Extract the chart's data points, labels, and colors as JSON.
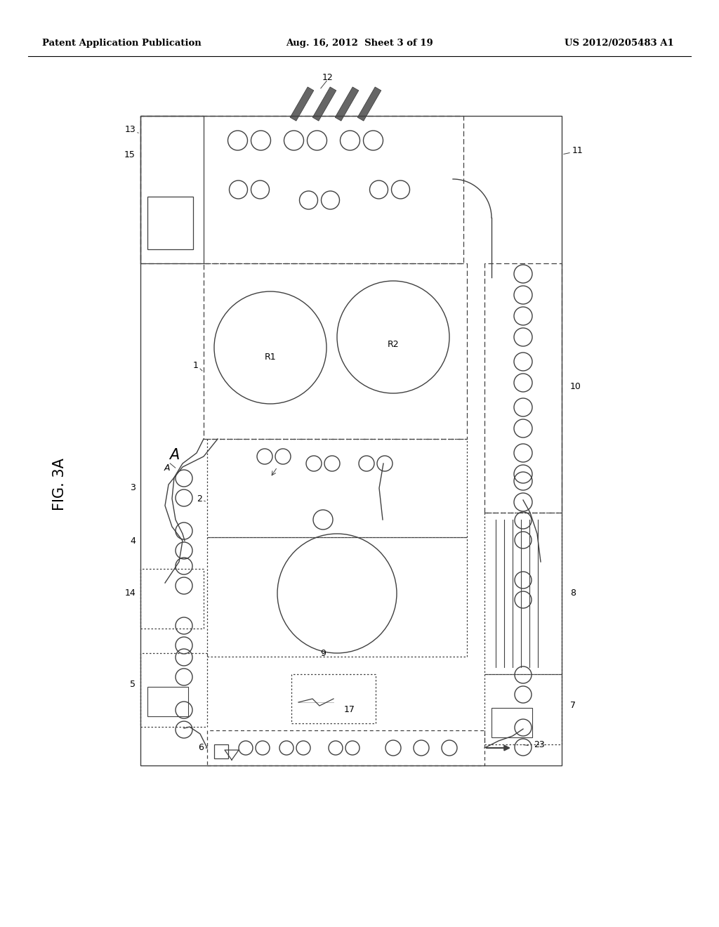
{
  "bg_color": "#ffffff",
  "header_left": "Patent Application Publication",
  "header_center": "Aug. 16, 2012  Sheet 3 of 19",
  "header_right": "US 2012/0205483 A1",
  "fig_label": "FIG. 3A",
  "line_color": "#404040",
  "line_width": 1.0
}
